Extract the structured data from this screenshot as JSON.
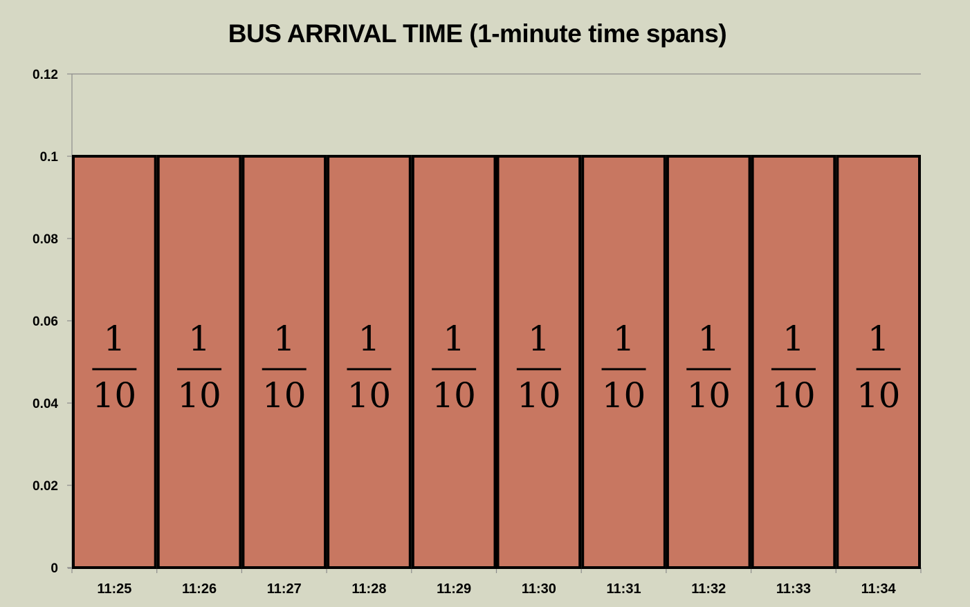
{
  "chart_data": {
    "type": "bar",
    "title": "BUS ARRIVAL TIME (1-minute time spans)",
    "xlabel": "",
    "ylabel": "",
    "categories": [
      "11:25",
      "11:26",
      "11:27",
      "11:28",
      "11:29",
      "11:30",
      "11:31",
      "11:32",
      "11:33",
      "11:34"
    ],
    "values": [
      0.1,
      0.1,
      0.1,
      0.1,
      0.1,
      0.1,
      0.1,
      0.1,
      0.1,
      0.1
    ],
    "data_labels": {
      "numerator": "1",
      "denominator": "10"
    },
    "ylim": [
      0,
      0.12
    ],
    "yticks": [
      "0",
      "0.02",
      "0.04",
      "0.06",
      "0.08",
      "0.1",
      "0.12"
    ],
    "grid": false,
    "legend": "none",
    "colors": {
      "background": "#d6d8c4",
      "bar_fill": "#c87761",
      "bar_edge": "#000000",
      "axis": "#8c8c8c"
    }
  }
}
